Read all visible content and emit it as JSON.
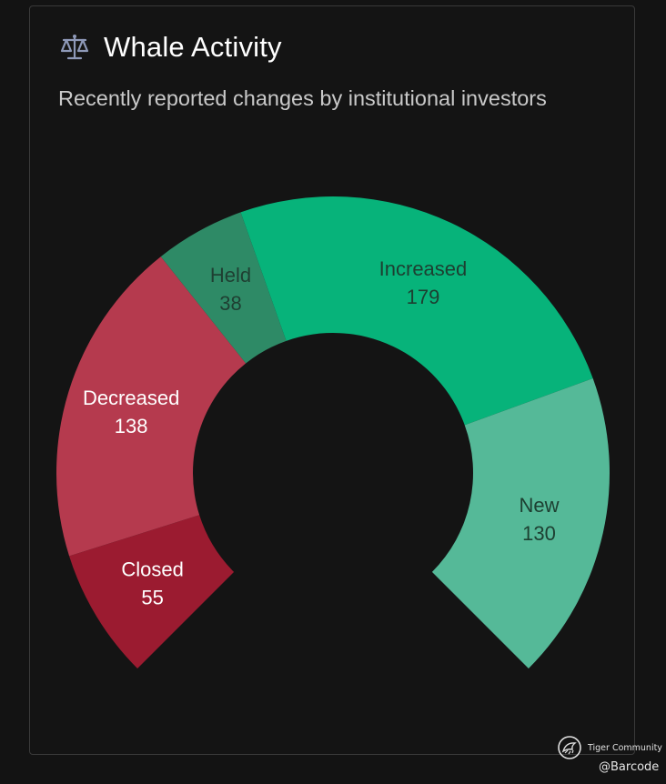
{
  "header": {
    "title": "Whale Activity",
    "subtitle": "Recently reported changes by institutional investors",
    "icon": "balance-scale-icon"
  },
  "chart_data": {
    "type": "pie",
    "variant": "gauge-donut",
    "title": "Whale Activity",
    "subtitle": "Recently reported changes by institutional investors",
    "slices": [
      {
        "label": "Closed",
        "value": 55,
        "color": "#9b1b30",
        "text_color": "#ffffff"
      },
      {
        "label": "Decreased",
        "value": 138,
        "color": "#b53a4e",
        "text_color": "#ffffff"
      },
      {
        "label": "Held",
        "value": 38,
        "color": "#2e8a66",
        "text_color": "#1f3f32"
      },
      {
        "label": "Increased",
        "value": 179,
        "color": "#07b37a",
        "text_color": "#1d3f31"
      },
      {
        "label": "New",
        "value": 130,
        "color": "#55b998",
        "text_color": "#1d3f31"
      }
    ]
  },
  "footer": {
    "brand": "Tiger Community",
    "handle": "@Barcode",
    "brand_icon": "tiger-logo-icon"
  }
}
